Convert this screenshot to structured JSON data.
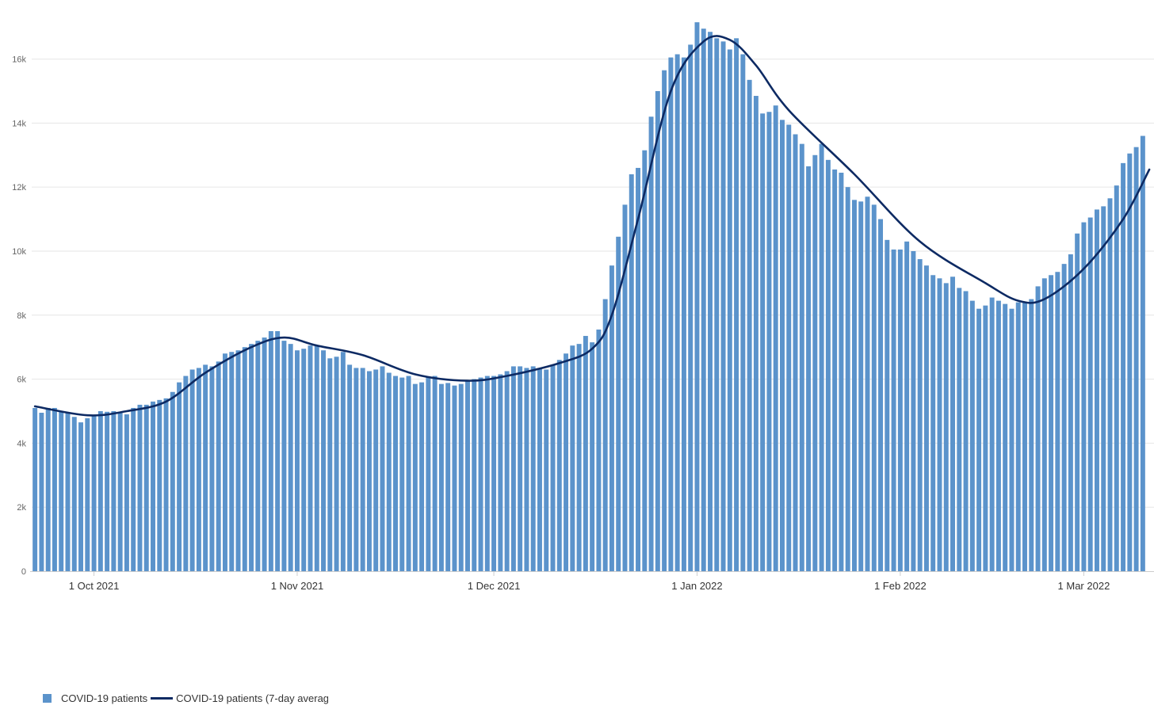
{
  "chart_data": {
    "type": "bar",
    "start_date": "2021-09-22",
    "y_ticks": [
      "0",
      "2k",
      "4k",
      "6k",
      "8k",
      "10k",
      "12k",
      "14k",
      "16k"
    ],
    "ylim": [
      0,
      17400
    ],
    "x_ticks": [
      {
        "label": "1 Oct 2021",
        "date": "2021-10-01"
      },
      {
        "label": "1 Nov 2021",
        "date": "2021-11-01"
      },
      {
        "label": "1 Dec 2021",
        "date": "2021-12-01"
      },
      {
        "label": "1 Jan 2022",
        "date": "2022-01-01"
      },
      {
        "label": "1 Feb 2022",
        "date": "2022-02-01"
      },
      {
        "label": "1 Mar 2022",
        "date": "2022-03-01"
      }
    ],
    "grid": true,
    "legend_position": "bottom-left",
    "colors": {
      "bars": "#5b93cb",
      "line": "#0d2a63",
      "grid": "#e6e6e6",
      "axis": "#cccccc"
    },
    "series": [
      {
        "name": "COVID-19 patients",
        "kind": "bar",
        "values": [
          5100,
          4950,
          5100,
          5100,
          5000,
          4950,
          4820,
          4650,
          4780,
          4850,
          5000,
          4980,
          5000,
          4960,
          4900,
          5100,
          5200,
          5200,
          5300,
          5350,
          5400,
          5600,
          5900,
          6100,
          6300,
          6350,
          6450,
          6400,
          6550,
          6800,
          6850,
          6900,
          7000,
          7100,
          7200,
          7300,
          7500,
          7500,
          7200,
          7100,
          6900,
          6950,
          7050,
          7050,
          6900,
          6650,
          6700,
          6850,
          6450,
          6350,
          6350,
          6250,
          6300,
          6400,
          6200,
          6100,
          6050,
          6100,
          5850,
          5900,
          6050,
          6100,
          5850,
          5880,
          5800,
          5850,
          5950,
          6000,
          6050,
          6100,
          6100,
          6150,
          6250,
          6400,
          6400,
          6350,
          6400,
          6350,
          6300,
          6450,
          6600,
          6800,
          7050,
          7100,
          7350,
          7150,
          7550,
          8500,
          9550,
          10450,
          11450,
          12400,
          12600,
          13150,
          14200,
          15000,
          15650,
          16050,
          16150,
          16050,
          16450,
          17150,
          16950,
          16850,
          16650,
          16550,
          16300,
          16650,
          16150,
          15350,
          14850,
          14300,
          14350,
          14550,
          14100,
          13950,
          13650,
          13350,
          12650,
          13000,
          13350,
          12850,
          12550,
          12450,
          12000,
          11600,
          11550,
          11700,
          11450,
          11000,
          10350,
          10050,
          10050,
          10300,
          10000,
          9750,
          9550,
          9250,
          9150,
          9000,
          9200,
          8850,
          8750,
          8450,
          8200,
          8300,
          8550,
          8450,
          8350,
          8200,
          8400,
          8400,
          8500,
          8900,
          9150,
          9250,
          9350,
          9600,
          9900,
          10550,
          10900,
          11050,
          11300,
          11400,
          11650,
          12050,
          12750,
          13050,
          13250,
          13600
        ]
      },
      {
        "name": "COVID-19 patients (7-day average",
        "kind": "line",
        "smooth": true,
        "points": [
          {
            "day": 0,
            "value": 5150
          },
          {
            "day": 8,
            "value": 4870
          },
          {
            "day": 14,
            "value": 5000
          },
          {
            "day": 20,
            "value": 5300
          },
          {
            "day": 26,
            "value": 6200
          },
          {
            "day": 33,
            "value": 7000
          },
          {
            "day": 38,
            "value": 7300
          },
          {
            "day": 43,
            "value": 7050
          },
          {
            "day": 50,
            "value": 6750
          },
          {
            "day": 58,
            "value": 6150
          },
          {
            "day": 66,
            "value": 5950
          },
          {
            "day": 72,
            "value": 6100
          },
          {
            "day": 80,
            "value": 6500
          },
          {
            "day": 85,
            "value": 6950
          },
          {
            "day": 88,
            "value": 8000
          },
          {
            "day": 92,
            "value": 11000
          },
          {
            "day": 97,
            "value": 15000
          },
          {
            "day": 102,
            "value": 16550
          },
          {
            "day": 106,
            "value": 16600
          },
          {
            "day": 110,
            "value": 15800
          },
          {
            "day": 115,
            "value": 14400
          },
          {
            "day": 125,
            "value": 12400
          },
          {
            "day": 135,
            "value": 10300
          },
          {
            "day": 145,
            "value": 9000
          },
          {
            "day": 150,
            "value": 8450
          },
          {
            "day": 154,
            "value": 8500
          },
          {
            "day": 160,
            "value": 9450
          },
          {
            "day": 166,
            "value": 11000
          },
          {
            "day": 170,
            "value": 12550
          }
        ]
      }
    ]
  },
  "legend": {
    "bar_label": "COVID-19 patients",
    "line_label": "COVID-19 patients (7-day average"
  }
}
